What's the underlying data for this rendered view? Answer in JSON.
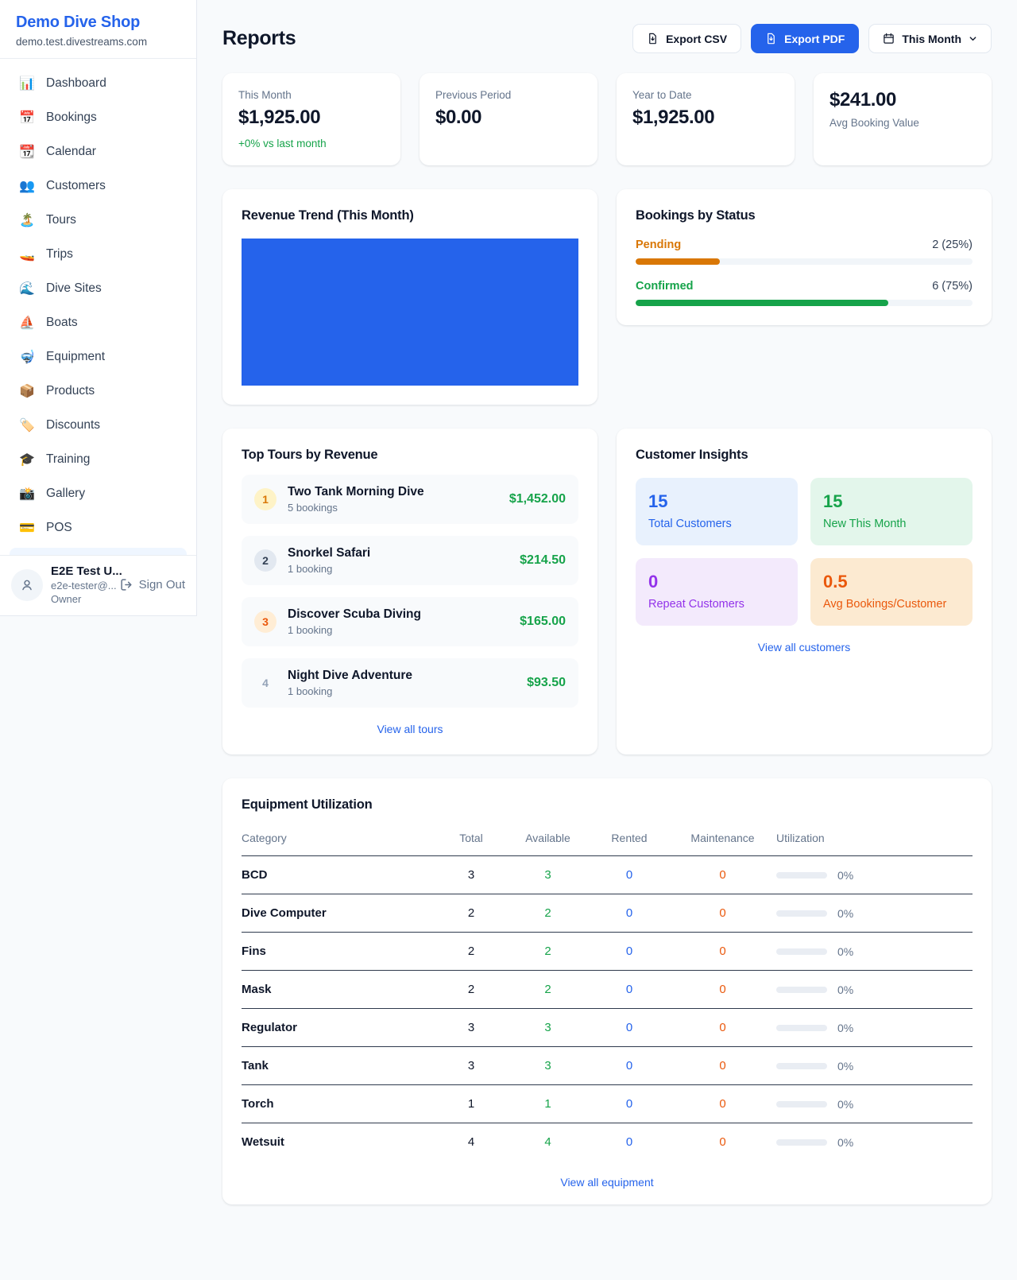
{
  "colors": {
    "accent_blue": "#2563eb",
    "green": "#16a34a",
    "amber": "#d97706",
    "orange": "#ea580c",
    "purple": "#9333ea",
    "page_background": "#f8fafc"
  },
  "sidebar": {
    "brand": {
      "name": "Demo Dive Shop",
      "domain": "demo.test.divestreams.com"
    },
    "nav": [
      {
        "icon": "📊",
        "label": "Dashboard"
      },
      {
        "icon": "📅",
        "label": "Bookings"
      },
      {
        "icon": "📆",
        "label": "Calendar"
      },
      {
        "icon": "👥",
        "label": "Customers"
      },
      {
        "icon": "🏝️",
        "label": "Tours"
      },
      {
        "icon": "🚤",
        "label": "Trips"
      },
      {
        "icon": "🌊",
        "label": "Dive Sites"
      },
      {
        "icon": "⛵",
        "label": "Boats"
      },
      {
        "icon": "🤿",
        "label": "Equipment"
      },
      {
        "icon": "📦",
        "label": "Products"
      },
      {
        "icon": "🏷️",
        "label": "Discounts"
      },
      {
        "icon": "🎓",
        "label": "Training"
      },
      {
        "icon": "📸",
        "label": "Gallery"
      },
      {
        "icon": "💳",
        "label": "POS"
      }
    ],
    "user": {
      "name": "E2E Test U...",
      "email": "e2e-tester@...",
      "role": "Owner",
      "sign_out": "Sign Out"
    }
  },
  "header": {
    "title": "Reports",
    "export_csv": "Export CSV",
    "export_pdf": "Export PDF",
    "period": "This Month"
  },
  "stats": [
    {
      "label": "This Month",
      "value": "$1,925.00",
      "delta": "+0% vs last month"
    },
    {
      "label": "Previous Period",
      "value": "$0.00"
    },
    {
      "label": "Year to Date",
      "value": "$1,925.00"
    },
    {
      "label": "Avg Booking Value",
      "value": "$241.00"
    }
  ],
  "revenue_trend": {
    "title": "Revenue Trend (This Month)"
  },
  "status": {
    "title": "Bookings by Status",
    "items": [
      {
        "label": "Pending",
        "value": "2 (25%)",
        "pct": 25
      },
      {
        "label": "Confirmed",
        "value": "6 (75%)",
        "pct": 75
      }
    ]
  },
  "top_tours": {
    "title": "Top Tours by Revenue",
    "items": [
      {
        "rank": "1",
        "name": "Two Tank Morning Dive",
        "bookings": "5 bookings",
        "amount": "$1,452.00"
      },
      {
        "rank": "2",
        "name": "Snorkel Safari",
        "bookings": "1 booking",
        "amount": "$214.50"
      },
      {
        "rank": "3",
        "name": "Discover Scuba Diving",
        "bookings": "1 booking",
        "amount": "$165.00"
      },
      {
        "rank": "4",
        "name": "Night Dive Adventure",
        "bookings": "1 booking",
        "amount": "$93.50"
      }
    ],
    "view_all": "View all tours"
  },
  "customer_insights": {
    "title": "Customer Insights",
    "tiles": [
      {
        "value": "15",
        "label": "Total Customers"
      },
      {
        "value": "15",
        "label": "New This Month"
      },
      {
        "value": "0",
        "label": "Repeat Customers"
      },
      {
        "value": "0.5",
        "label": "Avg Bookings/Customer"
      }
    ],
    "view_all": "View all customers"
  },
  "equipment": {
    "title": "Equipment Utilization",
    "columns": [
      "Category",
      "Total",
      "Available",
      "Rented",
      "Maintenance",
      "Utilization"
    ],
    "rows": [
      {
        "category": "BCD",
        "total": "3",
        "available": "3",
        "rented": "0",
        "maintenance": "0",
        "utilization": "0%",
        "utilization_pct": 0
      },
      {
        "category": "Dive Computer",
        "total": "2",
        "available": "2",
        "rented": "0",
        "maintenance": "0",
        "utilization": "0%",
        "utilization_pct": 0
      },
      {
        "category": "Fins",
        "total": "2",
        "available": "2",
        "rented": "0",
        "maintenance": "0",
        "utilization": "0%",
        "utilization_pct": 0
      },
      {
        "category": "Mask",
        "total": "2",
        "available": "2",
        "rented": "0",
        "maintenance": "0",
        "utilization": "0%",
        "utilization_pct": 0
      },
      {
        "category": "Regulator",
        "total": "3",
        "available": "3",
        "rented": "0",
        "maintenance": "0",
        "utilization": "0%",
        "utilization_pct": 0
      },
      {
        "category": "Tank",
        "total": "3",
        "available": "3",
        "rented": "0",
        "maintenance": "0",
        "utilization": "0%",
        "utilization_pct": 0
      },
      {
        "category": "Torch",
        "total": "1",
        "available": "1",
        "rented": "0",
        "maintenance": "0",
        "utilization": "0%",
        "utilization_pct": 0
      },
      {
        "category": "Wetsuit",
        "total": "4",
        "available": "4",
        "rented": "0",
        "maintenance": "0",
        "utilization": "0%",
        "utilization_pct": 0
      }
    ],
    "view_all": "View all equipment"
  },
  "chart_data": [
    {
      "type": "bar",
      "title": "Revenue Trend (This Month)",
      "categories": [
        "This Month"
      ],
      "values": [
        1925
      ],
      "xlabel": "",
      "ylabel": "",
      "note": "Single full-width solid blue bar filling entire plot area; no axes or labels visible"
    },
    {
      "type": "bar",
      "title": "Bookings by Status",
      "categories": [
        "Pending",
        "Confirmed"
      ],
      "values": [
        2,
        6
      ],
      "percent": [
        25,
        75
      ],
      "orientation": "horizontal"
    }
  ]
}
